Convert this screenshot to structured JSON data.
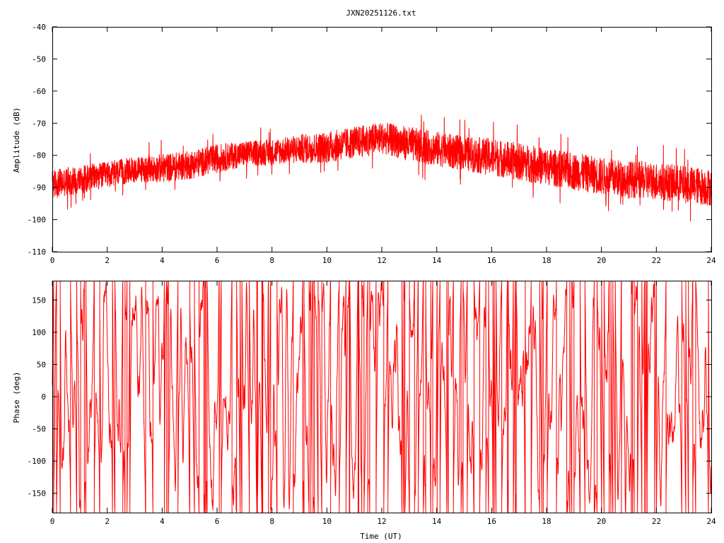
{
  "chart_data": [
    {
      "type": "line",
      "title": "JXN20251126.txt",
      "xlabel": "",
      "ylabel": "Amplitude (dB)",
      "xlim": [
        0,
        24
      ],
      "ylim": [
        -110,
        -40
      ],
      "xticks": [
        "0",
        "2",
        "4",
        "6",
        "8",
        "10",
        "12",
        "14",
        "16",
        "18",
        "20",
        "22",
        "24"
      ],
      "yticks": [
        "-40",
        "-50",
        "-60",
        "-70",
        "-80",
        "-90",
        "-100",
        "-110"
      ],
      "grid": false,
      "color": "#ff0000",
      "series": [
        {
          "x": [
            0,
            1,
            2,
            3,
            4,
            5,
            6,
            7,
            8,
            9,
            10,
            11,
            12,
            13,
            14,
            15,
            16,
            17,
            18,
            19,
            20,
            21,
            22,
            23,
            24
          ],
          "y_center": [
            -89,
            -87.5,
            -86,
            -84.5,
            -84,
            -83,
            -81,
            -79.5,
            -79,
            -78,
            -77.5,
            -76,
            -74.5,
            -76.5,
            -78,
            -79.5,
            -80.5,
            -82,
            -83.5,
            -85,
            -86.5,
            -87.5,
            -88,
            -89,
            -90
          ],
          "y_spread": [
            5,
            5,
            4.5,
            4.5,
            5,
            5,
            5,
            4.5,
            4.5,
            5,
            5.5,
            5.5,
            5.5,
            6,
            6,
            6,
            6.5,
            6.5,
            6.5,
            6.5,
            6.5,
            6.5,
            6.5,
            6.5,
            6.5
          ]
        }
      ]
    },
    {
      "type": "line",
      "title": "",
      "xlabel": "Time (UT)",
      "ylabel": "Phase (deg)",
      "xlim": [
        0,
        24
      ],
      "ylim": [
        -180,
        180
      ],
      "xticks": [
        "0",
        "2",
        "4",
        "6",
        "8",
        "10",
        "12",
        "14",
        "16",
        "18",
        "20",
        "22",
        "24"
      ],
      "yticks": [
        "150",
        "100",
        "50",
        "0",
        "-50",
        "-100",
        "-150"
      ],
      "ytick_values": [
        150,
        100,
        50,
        0,
        -50,
        -100,
        -150
      ],
      "grid": false,
      "color": "#ff0000",
      "phase_wrap": [
        -180,
        180
      ]
    }
  ]
}
